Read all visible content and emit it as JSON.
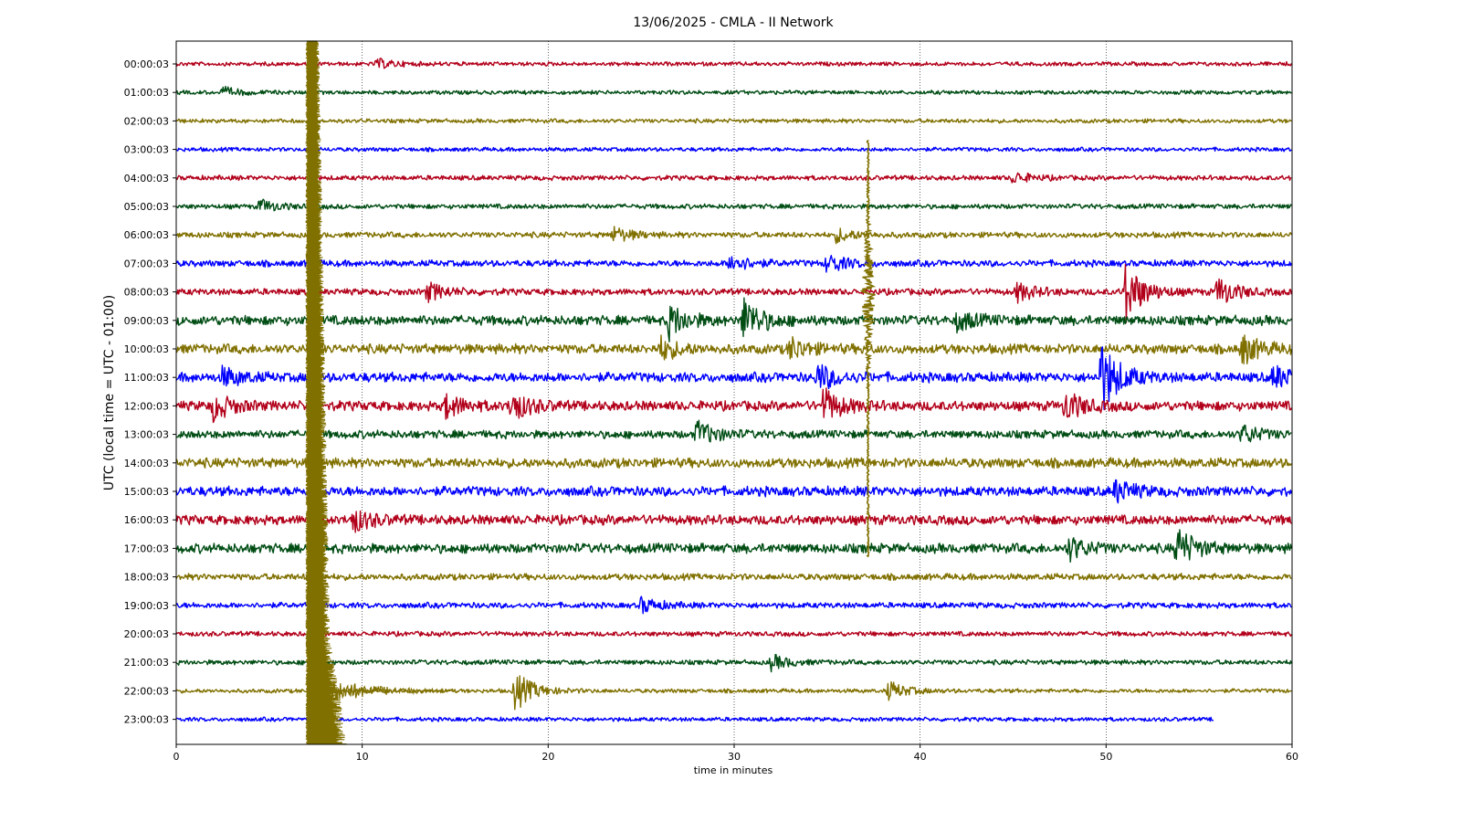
{
  "chart_data": {
    "type": "line",
    "subtype": "helicorder",
    "title": "13/06/2025 - CMLA - II Network",
    "xlabel": "time in minutes",
    "ylabel": "UTC (local time = UTC - 01:00)",
    "xlim": [
      0,
      60
    ],
    "x_ticks": [
      0,
      10,
      20,
      30,
      40,
      50,
      60
    ],
    "grid": "vertical dotted at x ticks",
    "color_cycle": [
      "#b2001a",
      "#004d14",
      "#807000",
      "#0000ff"
    ],
    "rows": [
      {
        "label": "00:00:03",
        "color": "#b2001a",
        "noise": 2.5,
        "end_minute": 60,
        "events": [
          {
            "minute": 10.8,
            "amp": 5
          }
        ]
      },
      {
        "label": "01:00:03",
        "color": "#004d14",
        "noise": 2.5,
        "end_minute": 60,
        "events": [
          {
            "minute": 2.5,
            "amp": 5
          }
        ]
      },
      {
        "label": "02:00:03",
        "color": "#807000",
        "noise": 2.5,
        "end_minute": 60,
        "events": []
      },
      {
        "label": "03:00:03",
        "color": "#0000ff",
        "noise": 2.5,
        "end_minute": 60,
        "events": []
      },
      {
        "label": "04:00:03",
        "color": "#b2001a",
        "noise": 3,
        "end_minute": 60,
        "events": [
          {
            "minute": 45,
            "amp": 6
          }
        ]
      },
      {
        "label": "05:00:03",
        "color": "#004d14",
        "noise": 3,
        "end_minute": 60,
        "events": [
          {
            "minute": 4.5,
            "amp": 7
          }
        ]
      },
      {
        "label": "06:00:03",
        "color": "#807000",
        "noise": 3.5,
        "end_minute": 60,
        "events": [
          {
            "minute": 23.5,
            "amp": 8
          },
          {
            "minute": 35.5,
            "amp": 7
          }
        ]
      },
      {
        "label": "07:00:03",
        "color": "#0000ff",
        "noise": 4,
        "end_minute": 60,
        "events": [
          {
            "minute": 29.8,
            "amp": 10
          },
          {
            "minute": 35,
            "amp": 10
          }
        ]
      },
      {
        "label": "08:00:03",
        "color": "#b2001a",
        "noise": 4,
        "end_minute": 60,
        "events": [
          {
            "minute": 13.5,
            "amp": 10
          },
          {
            "minute": 45.2,
            "amp": 10
          },
          {
            "minute": 51,
            "amp": 34
          },
          {
            "minute": 56,
            "amp": 16
          }
        ]
      },
      {
        "label": "09:00:03",
        "color": "#004d14",
        "noise": 6,
        "end_minute": 60,
        "events": [
          {
            "minute": 26.5,
            "amp": 18
          },
          {
            "minute": 30.5,
            "amp": 24
          },
          {
            "minute": 42,
            "amp": 10
          }
        ]
      },
      {
        "label": "10:00:03",
        "color": "#807000",
        "noise": 6,
        "end_minute": 60,
        "events": [
          {
            "minute": 26,
            "amp": 12
          },
          {
            "minute": 33,
            "amp": 12
          },
          {
            "minute": 57.3,
            "amp": 16
          }
        ]
      },
      {
        "label": "11:00:03",
        "color": "#0000ff",
        "noise": 6,
        "end_minute": 60,
        "events": [
          {
            "minute": 2.5,
            "amp": 10
          },
          {
            "minute": 34.5,
            "amp": 14
          },
          {
            "minute": 49.7,
            "amp": 40
          },
          {
            "minute": 59,
            "amp": 12
          }
        ]
      },
      {
        "label": "12:00:03",
        "color": "#b2001a",
        "noise": 6,
        "end_minute": 60,
        "events": [
          {
            "minute": 2,
            "amp": 14
          },
          {
            "minute": 14.5,
            "amp": 12
          },
          {
            "minute": 18,
            "amp": 16
          },
          {
            "minute": 34.8,
            "amp": 18
          },
          {
            "minute": 47.8,
            "amp": 16
          }
        ]
      },
      {
        "label": "13:00:03",
        "color": "#004d14",
        "noise": 5,
        "end_minute": 60,
        "events": [
          {
            "minute": 28,
            "amp": 14
          },
          {
            "minute": 57.3,
            "amp": 10
          }
        ]
      },
      {
        "label": "14:00:03",
        "color": "#807000",
        "noise": 6,
        "end_minute": 60,
        "events": []
      },
      {
        "label": "15:00:03",
        "color": "#0000ff",
        "noise": 6,
        "end_minute": 60,
        "events": [
          {
            "minute": 50.5,
            "amp": 12
          }
        ]
      },
      {
        "label": "16:00:03",
        "color": "#b2001a",
        "noise": 6,
        "end_minute": 60,
        "events": [
          {
            "minute": 9.5,
            "amp": 12
          }
        ]
      },
      {
        "label": "17:00:03",
        "color": "#004d14",
        "noise": 6,
        "end_minute": 60,
        "events": [
          {
            "minute": 48,
            "amp": 12
          },
          {
            "minute": 53.8,
            "amp": 22
          }
        ]
      },
      {
        "label": "18:00:03",
        "color": "#807000",
        "noise": 4,
        "end_minute": 60,
        "events": []
      },
      {
        "label": "19:00:03",
        "color": "#0000ff",
        "noise": 3.5,
        "end_minute": 60,
        "events": [
          {
            "minute": 25,
            "amp": 8
          }
        ]
      },
      {
        "label": "20:00:03",
        "color": "#b2001a",
        "noise": 3,
        "end_minute": 60,
        "events": []
      },
      {
        "label": "21:00:03",
        "color": "#004d14",
        "noise": 3,
        "end_minute": 60,
        "events": [
          {
            "minute": 32,
            "amp": 8
          }
        ]
      },
      {
        "label": "22:00:03",
        "color": "#807000",
        "noise": 2.5,
        "end_minute": 60,
        "events": [
          {
            "minute": 18.2,
            "amp": 22
          },
          {
            "minute": 38.3,
            "amp": 10
          }
        ]
      },
      {
        "label": "23:00:03",
        "color": "#0000ff",
        "noise": 2.5,
        "end_minute": 55.8,
        "events": []
      }
    ],
    "large_events": [
      {
        "name": "large-earthquake-trace",
        "minute": 7.1,
        "color": "#807000",
        "from_row": 0,
        "to_row": 23
      },
      {
        "name": "secondary-earthquake-trace",
        "minute": 37.2,
        "color": "#807000",
        "from_row": 3,
        "to_row": 17
      }
    ]
  }
}
